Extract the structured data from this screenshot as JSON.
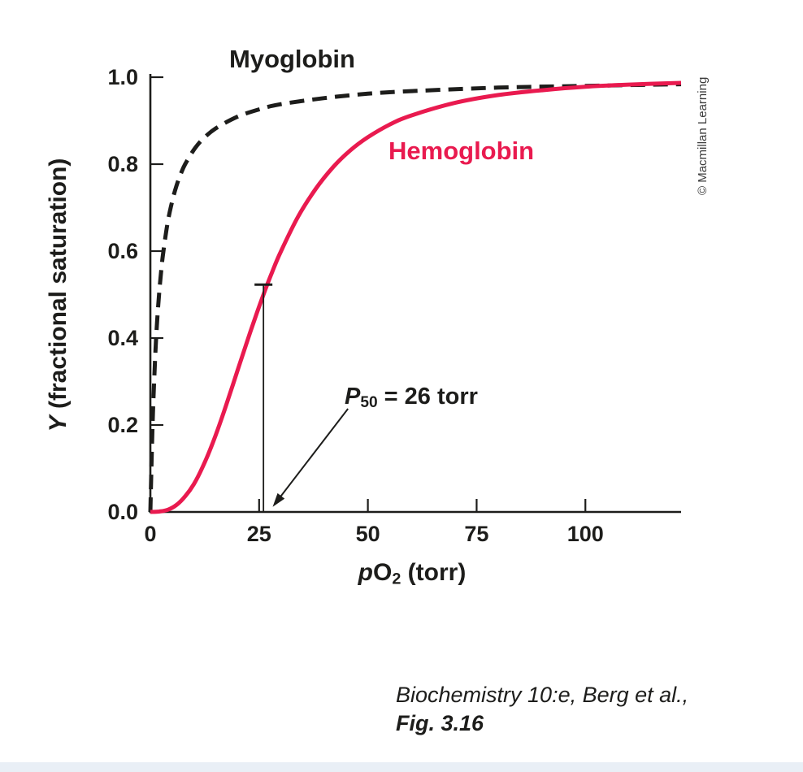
{
  "figure": {
    "copyright": "© Macmillan Learning",
    "caption_line1": "Biochemistry 10:e, Berg et al.,",
    "caption_line2": "Fig. 3.16"
  },
  "chart_data": {
    "type": "line",
    "title": "",
    "xlabel_parts": {
      "symbol": "p",
      "main": "O",
      "sub": "2",
      "suffix": " (torr)"
    },
    "ylabel_parts": {
      "symbol": "Y",
      "rest": " (fractional saturation)"
    },
    "xlim": [
      0,
      122
    ],
    "ylim": [
      0,
      1.0
    ],
    "x_ticks": [
      0,
      25,
      50,
      75,
      100
    ],
    "y_ticks": [
      "0.0",
      "0.2",
      "0.4",
      "0.6",
      "0.8",
      "1.0"
    ],
    "grid": false,
    "legend": "inline-labels",
    "axis_color": "#1d1d1b",
    "series": [
      {
        "name": "Myoglobin",
        "color": "#1d1d1b",
        "style": "dashed",
        "line_width": 5,
        "points": [
          [
            0,
            0
          ],
          [
            0.5,
            0.2
          ],
          [
            1,
            0.333
          ],
          [
            1.5,
            0.429
          ],
          [
            2,
            0.5
          ],
          [
            2.5,
            0.556
          ],
          [
            3,
            0.6
          ],
          [
            4,
            0.667
          ],
          [
            5,
            0.714
          ],
          [
            6,
            0.75
          ],
          [
            7,
            0.778
          ],
          [
            8,
            0.8
          ],
          [
            10,
            0.833
          ],
          [
            12,
            0.857
          ],
          [
            15,
            0.882
          ],
          [
            20,
            0.909
          ],
          [
            25,
            0.926
          ],
          [
            30,
            0.938
          ],
          [
            40,
            0.952
          ],
          [
            50,
            0.962
          ],
          [
            60,
            0.968
          ],
          [
            80,
            0.976
          ],
          [
            100,
            0.98
          ],
          [
            122,
            0.984
          ]
        ]
      },
      {
        "name": "Hemoglobin",
        "color": "#e91a4f",
        "style": "solid",
        "line_width": 5,
        "points": [
          [
            0,
            0
          ],
          [
            2,
            0.001
          ],
          [
            4,
            0.005
          ],
          [
            6,
            0.016
          ],
          [
            8,
            0.036
          ],
          [
            10,
            0.064
          ],
          [
            12,
            0.103
          ],
          [
            14,
            0.15
          ],
          [
            16,
            0.204
          ],
          [
            18,
            0.263
          ],
          [
            20,
            0.324
          ],
          [
            22,
            0.385
          ],
          [
            24,
            0.444
          ],
          [
            26,
            0.5
          ],
          [
            28,
            0.552
          ],
          [
            30,
            0.599
          ],
          [
            34,
            0.68
          ],
          [
            38,
            0.743
          ],
          [
            42,
            0.793
          ],
          [
            46,
            0.832
          ],
          [
            50,
            0.862
          ],
          [
            55,
            0.891
          ],
          [
            60,
            0.912
          ],
          [
            70,
            0.941
          ],
          [
            80,
            0.959
          ],
          [
            90,
            0.97
          ],
          [
            100,
            0.978
          ],
          [
            110,
            0.983
          ],
          [
            122,
            0.987
          ]
        ]
      }
    ],
    "annotation": {
      "symbol": "P",
      "symbol_sub": "50",
      "text": " = 26 torr",
      "p50_torr": 26,
      "marker_x": 26,
      "marker_y_top": 0.523
    }
  }
}
